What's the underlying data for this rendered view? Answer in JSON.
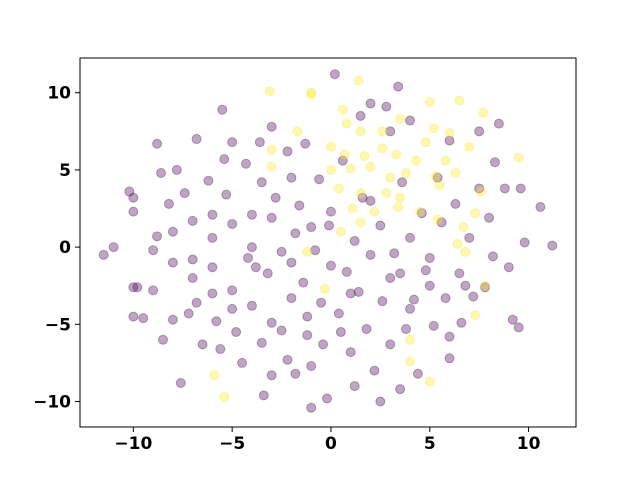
{
  "chart_data": {
    "type": "scatter",
    "xlim": [
      -12.7,
      12.4
    ],
    "ylim": [
      -11.65,
      12.25
    ],
    "xticks": [
      {
        "value": -10,
        "label": "−10"
      },
      {
        "value": -5,
        "label": "−5"
      },
      0,
      5,
      10
    ],
    "yticks": [
      {
        "value": -10,
        "label": "−10"
      },
      {
        "value": -5,
        "label": "−5"
      },
      0,
      5,
      10
    ],
    "series": [
      {
        "color": "#440154",
        "x": [
          -11.5,
          -11,
          -10.2,
          -10,
          -10,
          -10,
          -9.8,
          -10,
          -9.5,
          -9,
          -8.8,
          -8.8,
          -8.6,
          -8.5,
          -8.2,
          -8,
          -8,
          -8,
          -7.8,
          -7.6,
          -7.4,
          -7.2,
          -7,
          -7,
          -6.8,
          -6.8,
          -6.5,
          -6.2,
          -6,
          -6,
          -6,
          -5.8,
          -5.6,
          -5.5,
          -5.4,
          -5.3,
          -5,
          -5,
          -5,
          -4.8,
          -4.5,
          -4.3,
          -4.2,
          -4,
          -4,
          -3.8,
          -3.6,
          -3.5,
          -3.5,
          -3.4,
          -3.2,
          -3,
          -3,
          -3,
          -2.8,
          -2.5,
          -2.5,
          -2.2,
          -2.2,
          -2,
          -2,
          -1.8,
          -1.8,
          -1.6,
          -1.4,
          -1.3,
          -1.2,
          -1,
          -1,
          -0.8,
          -0.6,
          -0.5,
          -0.4,
          -0.2,
          0,
          0,
          0.2,
          0.4,
          0.6,
          0.8,
          1,
          1.2,
          1.4,
          1.6,
          1.8,
          2,
          2,
          2.2,
          2.5,
          2.6,
          2.8,
          3,
          3.2,
          3.4,
          3.5,
          3.6,
          3.8,
          4,
          4,
          4.2,
          4.4,
          4.6,
          4.8,
          5,
          5.2,
          5.4,
          5.6,
          5.8,
          6,
          6,
          6.3,
          6.5,
          6.6,
          7,
          7.2,
          7.5,
          7.8,
          8,
          8.2,
          8.8,
          9,
          9.2,
          9.5,
          9.6,
          9.8,
          10.6,
          11.2,
          -0.1,
          1,
          3,
          5,
          -2,
          -4,
          -6,
          2,
          4,
          6,
          7.5,
          8.5,
          3,
          1.5,
          -1.2,
          0.5,
          -7,
          -9,
          -5,
          6.8,
          8.3,
          -3,
          -1,
          2.5,
          1.2,
          3.5
        ],
        "values": [
          -0.5,
          0,
          3.6,
          3.2,
          2.3,
          -2.6,
          -2.6,
          -4.5,
          -4.6,
          -2.8,
          6.7,
          0.7,
          4.8,
          -6,
          2.8,
          1,
          -1,
          -4.7,
          5,
          -8.8,
          3.5,
          -4.3,
          1.7,
          -0.8,
          7,
          -3.6,
          -6.3,
          4.3,
          2.1,
          0.6,
          -1.3,
          -4.8,
          -6.6,
          8.9,
          5.7,
          3.4,
          6.8,
          1.5,
          -2.8,
          -5.5,
          -7.5,
          5.4,
          -0.7,
          2.1,
          -3.8,
          -1.3,
          6.8,
          -6.2,
          4.2,
          -9.6,
          -1.7,
          7.8,
          1.9,
          -4.9,
          3.2,
          -0.3,
          -5.4,
          6.2,
          -7.3,
          4.5,
          -3.3,
          0.9,
          -8.2,
          2.7,
          -2.3,
          6.7,
          -5.7,
          -10.4,
          1.3,
          -0.2,
          4.4,
          -3.6,
          -6.3,
          -9.8,
          2.3,
          -1.2,
          11.2,
          -4.3,
          5.6,
          -1.6,
          -6.8,
          0.4,
          -2.9,
          3.2,
          -5.3,
          9.3,
          -0.5,
          -8,
          1.4,
          -3.5,
          9.1,
          -6.3,
          -0.4,
          10.4,
          -1.7,
          4.2,
          -5.3,
          8.2,
          0.6,
          -3.4,
          -8.2,
          2.2,
          -1.5,
          -0.7,
          -5.1,
          4.5,
          1.6,
          -3.3,
          6.9,
          -7.2,
          2.8,
          -1.7,
          -4.9,
          0.6,
          -3.2,
          3.8,
          -2.6,
          1.9,
          -0.6,
          3.8,
          -1.3,
          -4.7,
          -5.2,
          3.8,
          0.3,
          2.6,
          0.1,
          1.4,
          -3,
          -2,
          -2.5,
          -1,
          0,
          -3,
          3,
          -4,
          -5.8,
          7.5,
          8,
          7.5,
          8.5,
          -4.5,
          -5.5,
          -2,
          -0.2,
          -4,
          -2.5,
          5.5,
          -8.3,
          -7.7,
          -10,
          -9,
          -9.2
        ]
      },
      {
        "color": "#fde725",
        "x": [
          -3.1,
          -1,
          -1,
          0.6,
          1.4,
          5,
          6.5,
          7.7,
          -1.7,
          0.8,
          1.5,
          2.6,
          3.5,
          5.2,
          6,
          -3,
          0,
          0.7,
          1.7,
          2.6,
          3.3,
          4.8,
          5.8,
          7,
          9.5,
          -3,
          0,
          1,
          2,
          3,
          4.3,
          5.3,
          6.3,
          7.6,
          0.4,
          1.5,
          2.8,
          3.5,
          4.5,
          5.5,
          1.1,
          2.2,
          3.4,
          5.4,
          6.7,
          7.3,
          0.5,
          1.5,
          6.4,
          6.8,
          -1.2,
          -0.3,
          7.8,
          7.3,
          4,
          4,
          5,
          -5.4,
          -5.9,
          3.8
        ],
        "values": [
          10.1,
          10,
          9.9,
          8.9,
          10.8,
          9.4,
          9.5,
          8.7,
          7.5,
          8,
          7.5,
          7.5,
          8.3,
          7.7,
          7.4,
          6.3,
          6.5,
          6,
          5.9,
          6.4,
          6,
          6.8,
          5.6,
          6.5,
          5.8,
          5.2,
          5,
          5.1,
          5.2,
          4.5,
          5.6,
          4.6,
          4.8,
          3.6,
          3.8,
          3.5,
          3.5,
          3.2,
          2.3,
          4,
          2.5,
          2.3,
          2.6,
          1.8,
          1.3,
          2.2,
          1,
          1.6,
          0.2,
          -0.3,
          -0.3,
          -2.7,
          -2.5,
          -4.4,
          -6,
          -7.4,
          -8.7,
          -9.7,
          -8.3,
          4.8
        ]
      }
    ]
  }
}
